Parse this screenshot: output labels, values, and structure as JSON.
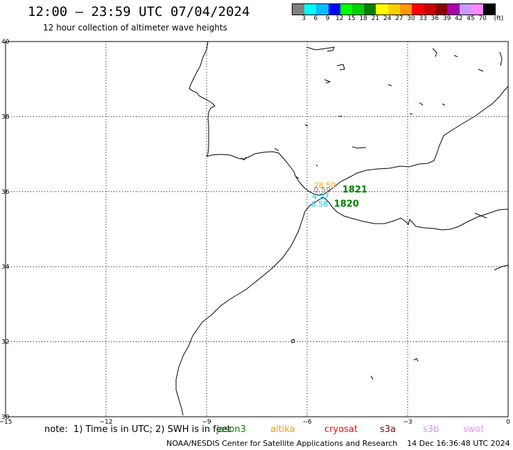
{
  "title": "12:00 – 23:59 UTC 07/04/2024",
  "subtitle": "12 hour collection of altimeter wave heights",
  "colorbar": {
    "unit": "(ft)",
    "labels": [
      "3",
      "6",
      "9",
      "12",
      "15",
      "18",
      "21",
      "24",
      "27",
      "30",
      "33",
      "36",
      "39",
      "42",
      "45",
      "70"
    ],
    "colors": [
      "#808080",
      "#00ffff",
      "#00c0ff",
      "#0000ff",
      "#00ff00",
      "#00d000",
      "#008000",
      "#ffff00",
      "#ffd000",
      "#ff9900",
      "#ff0000",
      "#cc0000",
      "#880000",
      "#aa00aa",
      "#cc99ff",
      "#ff88ff",
      "#000000"
    ]
  },
  "map": {
    "lon_range": [
      -15,
      0
    ],
    "lat_range": [
      30,
      40
    ],
    "lon_ticks": [
      "−15",
      "−12",
      "−9",
      "−6",
      "−3",
      "0"
    ],
    "lat_ticks": [
      "40",
      "38",
      "36",
      "34",
      "32",
      "30"
    ],
    "grid": true
  },
  "observations": {
    "swh": [
      {
        "text": "28.50",
        "color": "#ff9900",
        "lon": -5.8,
        "lat": 36.1
      },
      {
        "text": "0.59",
        "color": "#808080",
        "lon": -5.8,
        "lat": 35.98
      },
      {
        "text": "4.27",
        "color": "#00c0ff",
        "lon": -5.85,
        "lat": 35.8
      },
      {
        "text": "6.58",
        "color": "#00c0ff",
        "lon": -5.88,
        "lat": 35.6
      }
    ],
    "passes": [
      {
        "text": "1821",
        "color": "#008000",
        "lon": -4.95,
        "lat": 35.98
      },
      {
        "text": "1820",
        "color": "#008000",
        "lon": -5.2,
        "lat": 35.6
      }
    ]
  },
  "note": "note:  1) Time is in UTC; 2) SWH is in feet",
  "satellites": [
    {
      "name": "jason3",
      "color": "#008000"
    },
    {
      "name": "altika",
      "color": "#ff9900"
    },
    {
      "name": "cryosat",
      "color": "#ff0000"
    },
    {
      "name": "s3a",
      "color": "#880000"
    },
    {
      "name": "s3b",
      "color": "#cc99ff"
    },
    {
      "name": "swot",
      "color": "#ff88ff"
    }
  ],
  "credit": "NOAA/NESDIS Center for Satellite Applications and Research    14 Dec 16:36:48 UTC 2024"
}
